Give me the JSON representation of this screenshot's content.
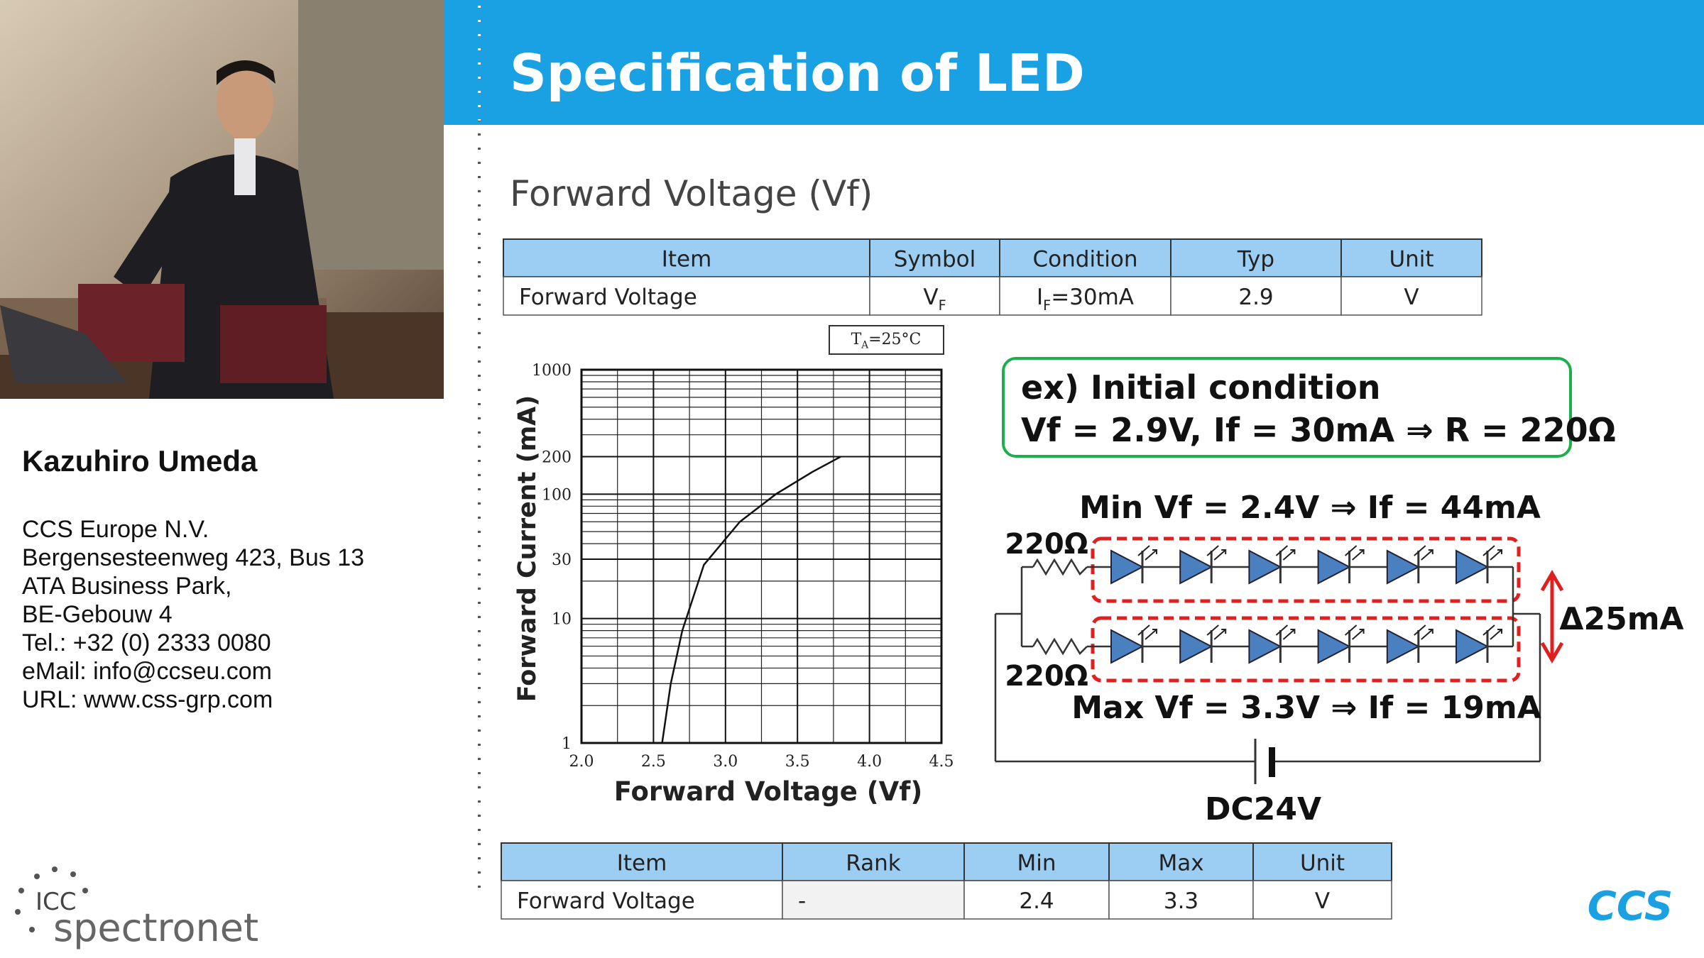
{
  "speaker": {
    "name": "Kazuhiro Umeda",
    "details": [
      "CCS Europe N.V.",
      "Bergensesteenweg 423, Bus 13",
      "ATA Business Park,",
      "BE-Gebouw 4",
      "Tel.: +32 (0) 2333 0080",
      "eMail: info@ccseu.com",
      "URL: www.css-grp.com"
    ]
  },
  "event_logo": {
    "top": "ICC",
    "bottom": "spectronet"
  },
  "slide": {
    "title": "Specification of LED",
    "subtitle": "Forward Voltage (Vf)",
    "spec_table": {
      "header": [
        "Item",
        "Symbol",
        "Condition",
        "Typ",
        "Unit"
      ],
      "row": [
        "Forward Voltage",
        {
          "text": "V",
          "sub": "F"
        },
        {
          "text": "I",
          "sub": "F",
          "rest": "=30mA"
        },
        "2.9",
        "V"
      ]
    },
    "rank_table": {
      "header": [
        "Item",
        "Rank",
        "Min",
        "Max",
        "Unit"
      ],
      "row": [
        "Forward Voltage",
        "-",
        "2.4",
        "3.3",
        "V"
      ]
    },
    "example": {
      "line1": "ex) Initial condition",
      "line2": "Vf = 2.9V, If = 30mA ⇒ R = 220Ω"
    },
    "circuit": {
      "min": "Min Vf = 2.4V ⇒ If = 44mA",
      "max": "Max Vf = 3.3V ⇒ If = 19mA",
      "resistor_labels": [
        "220Ω",
        "220Ω"
      ],
      "delta": "Δ25mA",
      "source": "DC24V"
    },
    "logo": "CCS"
  },
  "chart_data": {
    "type": "line",
    "x_label": "Forward Voltage (Vf)",
    "y_label": "Forward Current (mA)",
    "annotation": {
      "text": "T",
      "sub": "A",
      "rest": "=25°C"
    },
    "x": [
      2.56,
      2.62,
      2.7,
      2.85,
      3.1,
      3.35,
      3.6,
      3.8
    ],
    "values": [
      1,
      3,
      8,
      27,
      60,
      100,
      150,
      200
    ],
    "color": "#111111",
    "xlim": [
      2,
      4.5
    ],
    "ylim": [
      1,
      1000
    ],
    "xticks": [
      {
        "value": 2,
        "label": "2.0"
      },
      2.5,
      {
        "value": 3,
        "label": "3.0"
      },
      3.5,
      {
        "value": 4,
        "label": "4.0"
      },
      4.5
    ],
    "yticks": [
      1,
      10,
      30,
      100,
      200,
      1000
    ],
    "y_log": true,
    "grid": true,
    "minor_grid": true
  }
}
